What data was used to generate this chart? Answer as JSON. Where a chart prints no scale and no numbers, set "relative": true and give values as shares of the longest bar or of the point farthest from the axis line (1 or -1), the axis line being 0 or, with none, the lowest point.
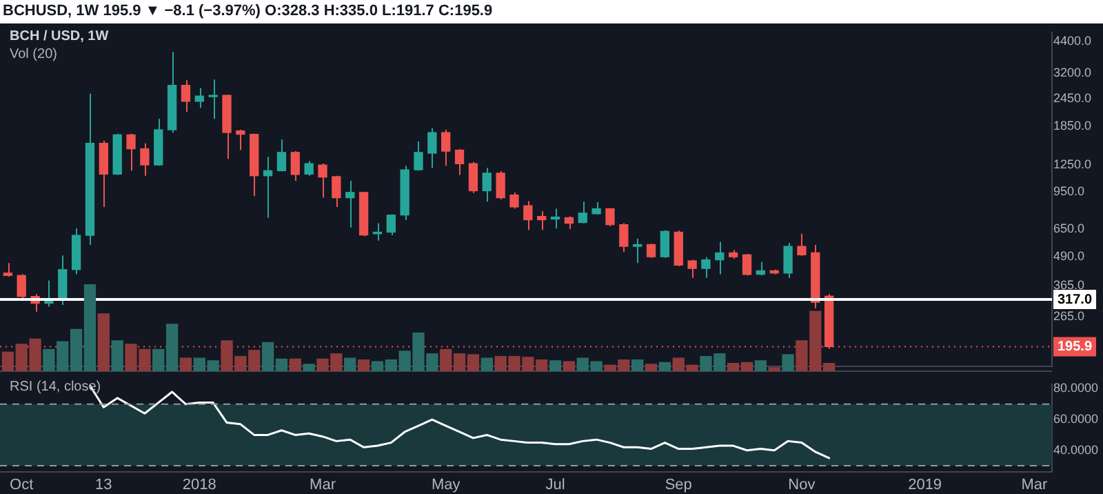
{
  "chart_data": [
    {
      "type": "candlestick",
      "title": "BCHUSD, 1W  195.9 ▼ −8.1 (−3.97%) O:328.3 H:335.0 L:191.7 C:195.9",
      "subtitle": "BCH / USD, 1W",
      "x": [
        "2017-09-25",
        "2017-10-02",
        "2017-10-09",
        "2017-10-16",
        "2017-10-23",
        "2017-10-30",
        "2017-11-06",
        "2017-11-13",
        "2017-11-20",
        "2017-11-27",
        "2017-12-04",
        "2017-12-11",
        "2017-12-18",
        "2017-12-25",
        "2018-01-01",
        "2018-01-08",
        "2018-01-15",
        "2018-01-22",
        "2018-01-29",
        "2018-02-05",
        "2018-02-12",
        "2018-02-19",
        "2018-02-26",
        "2018-03-05",
        "2018-03-12",
        "2018-03-19",
        "2018-03-26",
        "2018-04-02",
        "2018-04-09",
        "2018-04-16",
        "2018-04-23",
        "2018-04-30",
        "2018-05-07",
        "2018-05-14",
        "2018-05-21",
        "2018-05-28",
        "2018-06-04",
        "2018-06-11",
        "2018-06-18",
        "2018-06-25",
        "2018-07-02",
        "2018-07-09",
        "2018-07-16",
        "2018-07-23",
        "2018-07-30",
        "2018-08-06",
        "2018-08-13",
        "2018-08-20",
        "2018-08-27",
        "2018-09-03",
        "2018-09-10",
        "2018-09-17",
        "2018-09-24",
        "2018-10-01",
        "2018-10-08",
        "2018-10-15",
        "2018-10-22",
        "2018-10-29",
        "2018-11-05",
        "2018-11-12",
        "2018-11-19"
      ],
      "ohlc": [
        [
          415,
          460,
          400,
          405
        ],
        [
          405,
          410,
          320,
          327
        ],
        [
          327,
          335,
          280,
          305
        ],
        [
          305,
          385,
          295,
          315
        ],
        [
          315,
          497,
          300,
          430
        ],
        [
          430,
          655,
          410,
          610
        ],
        [
          610,
          2590,
          553,
          1560
        ],
        [
          1560,
          1600,
          815,
          1140
        ],
        [
          1140,
          1720,
          1130,
          1700
        ],
        [
          1700,
          1720,
          1180,
          1475
        ],
        [
          1475,
          1560,
          1120,
          1250
        ],
        [
          1250,
          2000,
          1240,
          1790
        ],
        [
          1790,
          3960,
          1740,
          2820
        ],
        [
          2820,
          2970,
          2150,
          2395
        ],
        [
          2395,
          2740,
          2240,
          2525
        ],
        [
          2510,
          2990,
          2000,
          2545
        ],
        [
          2545,
          2560,
          1330,
          1740
        ],
        [
          1770,
          1790,
          1455,
          1710
        ],
        [
          1710,
          1720,
          910,
          1120
        ],
        [
          1120,
          1360,
          730,
          1180
        ],
        [
          1180,
          1620,
          1170,
          1420
        ],
        [
          1420,
          1440,
          1065,
          1135
        ],
        [
          1140,
          1300,
          1120,
          1267
        ],
        [
          1250,
          1270,
          895,
          1105
        ],
        [
          1110,
          1120,
          815,
          895
        ],
        [
          895,
          1065,
          660,
          945
        ],
        [
          945,
          950,
          605,
          612
        ],
        [
          620,
          690,
          578,
          630
        ],
        [
          630,
          755,
          610,
          750
        ],
        [
          750,
          1240,
          712,
          1190
        ],
        [
          1190,
          1590,
          1180,
          1420
        ],
        [
          1410,
          1820,
          1215,
          1740
        ],
        [
          1740,
          1790,
          1240,
          1440
        ],
        [
          1455,
          1470,
          1130,
          1267
        ],
        [
          1267,
          1290,
          940,
          961
        ],
        [
          961,
          1215,
          860,
          1150
        ],
        [
          1150,
          1175,
          880,
          895
        ],
        [
          920,
          945,
          800,
          815
        ],
        [
          825,
          865,
          645,
          715
        ],
        [
          740,
          780,
          645,
          715
        ],
        [
          720,
          800,
          655,
          735
        ],
        [
          730,
          740,
          650,
          690
        ],
        [
          695,
          860,
          690,
          765
        ],
        [
          760,
          855,
          755,
          800
        ],
        [
          800,
          805,
          670,
          680
        ],
        [
          680,
          690,
          515,
          545
        ],
        [
          545,
          590,
          460,
          555
        ],
        [
          555,
          560,
          485,
          490
        ],
        [
          490,
          642,
          485,
          635
        ],
        [
          630,
          640,
          445,
          450
        ],
        [
          470,
          475,
          395,
          435
        ],
        [
          435,
          488,
          395,
          475
        ],
        [
          475,
          570,
          410,
          510
        ],
        [
          510,
          525,
          480,
          490
        ],
        [
          500,
          505,
          405,
          409
        ],
        [
          410,
          465,
          405,
          425
        ],
        [
          425,
          430,
          410,
          415
        ],
        [
          415,
          565,
          395,
          545
        ],
        [
          545,
          620,
          495,
          500
        ],
        [
          510,
          553,
          290,
          308
        ],
        [
          328.3,
          335,
          191.7,
          195.9
        ]
      ],
      "colors": [
        "#ef5350",
        "#ef5350",
        "#ef5350",
        "#26a69a",
        "#26a69a",
        "#26a69a",
        "#26a69a",
        "#ef5350",
        "#26a69a",
        "#ef5350",
        "#ef5350",
        "#26a69a",
        "#26a69a",
        "#ef5350",
        "#26a69a",
        "#26a69a",
        "#ef5350",
        "#ef5350",
        "#ef5350",
        "#26a69a",
        "#26a69a",
        "#ef5350",
        "#26a69a",
        "#ef5350",
        "#ef5350",
        "#26a69a",
        "#ef5350",
        "#26a69a",
        "#26a69a",
        "#26a69a",
        "#26a69a",
        "#26a69a",
        "#ef5350",
        "#ef5350",
        "#ef5350",
        "#26a69a",
        "#ef5350",
        "#ef5350",
        "#ef5350",
        "#ef5350",
        "#26a69a",
        "#ef5350",
        "#26a69a",
        "#26a69a",
        "#ef5350",
        "#ef5350",
        "#26a69a",
        "#ef5350",
        "#26a69a",
        "#ef5350",
        "#ef5350",
        "#26a69a",
        "#26a69a",
        "#ef5350",
        "#ef5350",
        "#26a69a",
        "#ef5350",
        "#26a69a",
        "#ef5350",
        "#ef5350",
        "#ef5350"
      ],
      "log": true,
      "xlim": [
        "2017-09-21",
        "2019-03-13"
      ],
      "ylim": [
        160,
        4840
      ],
      "yticks": [
        {
          "value": 265,
          "label": "265.0"
        },
        {
          "value": 365,
          "label": "365.0"
        },
        {
          "value": 490,
          "label": "490.0"
        },
        {
          "value": 650,
          "label": "650.0"
        },
        {
          "value": 950,
          "label": "950.0"
        },
        {
          "value": 1250,
          "label": "1250.0"
        },
        {
          "value": 1850,
          "label": "1850.0"
        },
        {
          "value": 2450,
          "label": "2450.0"
        },
        {
          "value": 3200,
          "label": "3200.0"
        },
        {
          "value": 4400,
          "label": "4400.0"
        }
      ],
      "ref_lines": [
        {
          "axis": "y",
          "value": 317,
          "label": "317.0",
          "color": "#ffffff",
          "line_style": "solid"
        },
        {
          "axis": "y",
          "value": 195.9,
          "label": "195.9",
          "color": "#ef5350",
          "line_style": "dotted"
        }
      ],
      "tick_labels": "y"
    },
    {
      "type": "bar",
      "title": "Vol (20)",
      "relative": true,
      "x": [
        "2017-09-25",
        "2017-10-02",
        "2017-10-09",
        "2017-10-16",
        "2017-10-23",
        "2017-10-30",
        "2017-11-06",
        "2017-11-13",
        "2017-11-20",
        "2017-11-27",
        "2017-12-04",
        "2017-12-11",
        "2017-12-18",
        "2017-12-25",
        "2018-01-01",
        "2018-01-08",
        "2018-01-15",
        "2018-01-22",
        "2018-01-29",
        "2018-02-05",
        "2018-02-12",
        "2018-02-19",
        "2018-02-26",
        "2018-03-05",
        "2018-03-12",
        "2018-03-19",
        "2018-03-26",
        "2018-04-02",
        "2018-04-09",
        "2018-04-16",
        "2018-04-23",
        "2018-04-30",
        "2018-05-07",
        "2018-05-14",
        "2018-05-21",
        "2018-05-28",
        "2018-06-04",
        "2018-06-11",
        "2018-06-18",
        "2018-06-25",
        "2018-07-02",
        "2018-07-09",
        "2018-07-16",
        "2018-07-23",
        "2018-07-30",
        "2018-08-06",
        "2018-08-13",
        "2018-08-20",
        "2018-08-27",
        "2018-09-03",
        "2018-09-10",
        "2018-09-17",
        "2018-09-24",
        "2018-10-01",
        "2018-10-08",
        "2018-10-15",
        "2018-10-22",
        "2018-10-29",
        "2018-11-05",
        "2018-11-12",
        "2018-11-19"
      ],
      "values": [
        0.22,
        0.31,
        0.37,
        0.25,
        0.34,
        0.48,
        1,
        0.66,
        0.35,
        0.31,
        0.25,
        0.25,
        0.54,
        0.15,
        0.15,
        0.12,
        0.35,
        0.17,
        0.24,
        0.33,
        0.14,
        0.14,
        0.08,
        0.14,
        0.2,
        0.15,
        0.13,
        0.11,
        0.13,
        0.23,
        0.44,
        0.2,
        0.25,
        0.2,
        0.19,
        0.15,
        0.17,
        0.17,
        0.16,
        0.13,
        0.12,
        0.11,
        0.15,
        0.11,
        0.07,
        0.13,
        0.13,
        0.08,
        0.1,
        0.15,
        0.07,
        0.17,
        0.2,
        0.09,
        0.1,
        0.12,
        0.04,
        0.19,
        0.35,
        0.69,
        0.09
      ],
      "colors": [
        "#8e3b3c",
        "#8e3b3c",
        "#8e3b3c",
        "#2b6e69",
        "#2b6e69",
        "#2b6e69",
        "#2b6e69",
        "#8e3b3c",
        "#2b6e69",
        "#8e3b3c",
        "#8e3b3c",
        "#2b6e69",
        "#2b6e69",
        "#8e3b3c",
        "#2b6e69",
        "#2b6e69",
        "#8e3b3c",
        "#8e3b3c",
        "#8e3b3c",
        "#2b6e69",
        "#2b6e69",
        "#8e3b3c",
        "#2b6e69",
        "#8e3b3c",
        "#8e3b3c",
        "#2b6e69",
        "#8e3b3c",
        "#2b6e69",
        "#2b6e69",
        "#2b6e69",
        "#2b6e69",
        "#2b6e69",
        "#8e3b3c",
        "#8e3b3c",
        "#8e3b3c",
        "#2b6e69",
        "#8e3b3c",
        "#8e3b3c",
        "#8e3b3c",
        "#8e3b3c",
        "#2b6e69",
        "#8e3b3c",
        "#2b6e69",
        "#2b6e69",
        "#8e3b3c",
        "#8e3b3c",
        "#2b6e69",
        "#8e3b3c",
        "#2b6e69",
        "#8e3b3c",
        "#8e3b3c",
        "#2b6e69",
        "#2b6e69",
        "#8e3b3c",
        "#8e3b3c",
        "#2b6e69",
        "#8e3b3c",
        "#2b6e69",
        "#8e3b3c",
        "#8e3b3c",
        "#8e3b3c"
      ],
      "xlim": [
        "2017-09-21",
        "2019-03-13"
      ],
      "tick_labels": false
    },
    {
      "type": "line",
      "title": "RSI (14, close)",
      "series": [
        {
          "color": "#ffffff",
          "x": [
            "2017-11-06",
            "2017-11-13",
            "2017-11-20",
            "2017-11-27",
            "2017-12-04",
            "2017-12-11",
            "2017-12-18",
            "2017-12-25",
            "2018-01-01",
            "2018-01-08",
            "2018-01-15",
            "2018-01-22",
            "2018-01-29",
            "2018-02-05",
            "2018-02-12",
            "2018-02-19",
            "2018-02-26",
            "2018-03-05",
            "2018-03-12",
            "2018-03-19",
            "2018-03-26",
            "2018-04-02",
            "2018-04-09",
            "2018-04-16",
            "2018-04-23",
            "2018-04-30",
            "2018-05-07",
            "2018-05-14",
            "2018-05-21",
            "2018-05-28",
            "2018-06-04",
            "2018-06-11",
            "2018-06-18",
            "2018-06-25",
            "2018-07-02",
            "2018-07-09",
            "2018-07-16",
            "2018-07-23",
            "2018-07-30",
            "2018-08-06",
            "2018-08-13",
            "2018-08-20",
            "2018-08-27",
            "2018-09-03",
            "2018-09-10",
            "2018-09-17",
            "2018-09-24",
            "2018-10-01",
            "2018-10-08",
            "2018-10-15",
            "2018-10-22",
            "2018-10-29",
            "2018-11-05",
            "2018-11-12",
            "2018-11-19"
          ],
          "values": [
            82,
            68,
            74,
            69,
            64,
            71,
            78,
            70,
            71,
            71,
            58,
            57,
            50,
            50,
            53,
            50,
            51,
            49,
            46,
            47,
            42,
            43,
            45,
            52,
            56,
            60,
            56,
            52,
            48,
            50,
            47,
            46,
            45,
            45,
            44,
            44,
            46,
            47,
            45,
            42,
            42,
            41,
            45,
            41,
            41,
            42,
            43,
            43,
            40,
            41,
            40,
            46,
            45,
            39,
            35
          ]
        }
      ],
      "marker": "none",
      "xlim": [
        "2017-09-21",
        "2019-03-13"
      ],
      "ylim": [
        26,
        83
      ],
      "xticks": [
        {
          "value": "2017-10-02",
          "label": "Oct"
        },
        {
          "value": "2017-11-13",
          "label": "13"
        },
        {
          "value": "2018-01-01",
          "label": "2018"
        },
        {
          "value": "2018-03-05",
          "label": "Mar"
        },
        {
          "value": "2018-05-07",
          "label": "May"
        },
        {
          "value": "2018-07-02",
          "label": "Jul"
        },
        {
          "value": "2018-09-03",
          "label": "Sep"
        },
        {
          "value": "2018-11-05",
          "label": "Nov"
        },
        {
          "value": "2019-01-07",
          "label": "2019"
        },
        {
          "value": "2019-03-04",
          "label": "Mar"
        }
      ],
      "yticks": [
        {
          "value": 40,
          "label": "40.0000"
        },
        {
          "value": 60,
          "label": "60.0000"
        },
        {
          "value": 80,
          "label": "80.0000"
        }
      ],
      "bands": [
        {
          "axis": "y",
          "from": 30,
          "to": 70,
          "color": "#19393d"
        }
      ],
      "ref_lines": [
        {
          "axis": "y",
          "value": 70,
          "color": "#9598a1",
          "line_style": "dashed"
        },
        {
          "axis": "y",
          "value": 30,
          "color": "#9598a1",
          "line_style": "dashed"
        }
      ]
    }
  ]
}
